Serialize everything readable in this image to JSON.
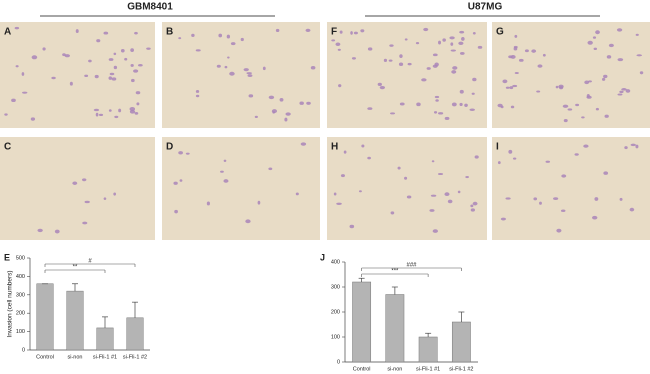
{
  "headers": [
    "GBM8401",
    "U87MG"
  ],
  "panels": [
    "A",
    "B",
    "F",
    "G",
    "C",
    "D",
    "H",
    "I"
  ],
  "chart_data": [
    {
      "type": "bar",
      "label": "E",
      "ylabel": "Invasion (cell numbers)",
      "categories": [
        "Control",
        "si-non",
        "si-Fli-1 #1",
        "si-Fli-1 #2"
      ],
      "values": [
        360,
        320,
        120,
        175
      ],
      "errors": [
        0,
        40,
        60,
        85
      ],
      "color": "#b4b4b4",
      "ylim": [
        0,
        500
      ],
      "yticks": [
        0,
        100,
        200,
        300,
        400,
        500
      ],
      "annotations": [
        "**",
        "#"
      ]
    },
    {
      "type": "bar",
      "label": "J",
      "categories": [
        "Control",
        "si-non",
        "si-Fli-1 #1",
        "si-Fli-1 #2"
      ],
      "values": [
        320,
        270,
        100,
        160
      ],
      "errors": [
        15,
        30,
        15,
        40
      ],
      "color": "#b4b4b4",
      "ylim": [
        0,
        400
      ],
      "yticks": [
        0,
        100,
        200,
        300,
        400
      ],
      "annotations": [
        "***",
        "###"
      ]
    }
  ]
}
